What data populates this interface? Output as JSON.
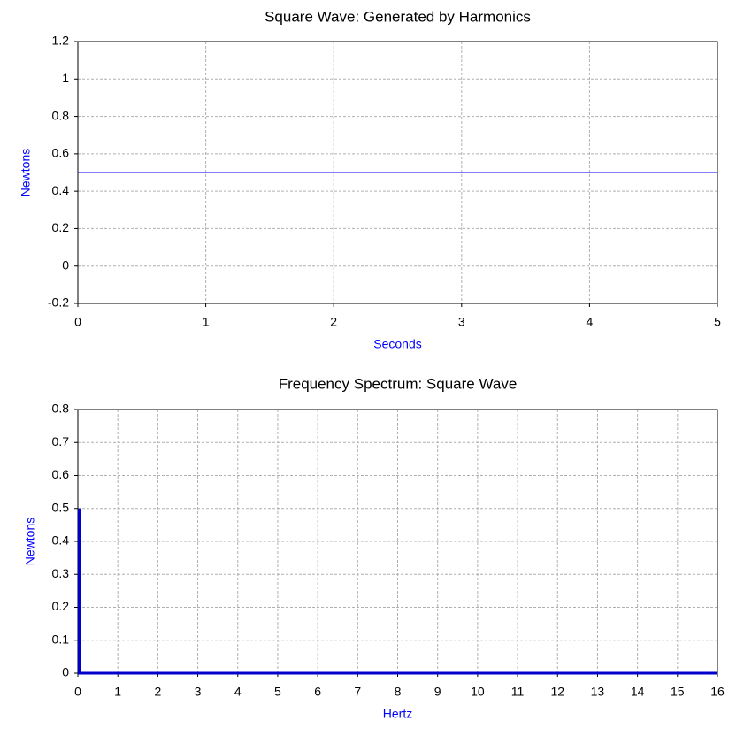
{
  "chart_data": [
    {
      "type": "line",
      "title": "Square Wave: Generated by Harmonics",
      "x_label": "Seconds",
      "y_label": "Newtons",
      "x": [
        0,
        5
      ],
      "values": [
        0.5,
        0.5
      ],
      "color": "#0000ff",
      "xlim": [
        0,
        5
      ],
      "ylim": [
        -0.2,
        1.2
      ],
      "xticks": [
        0,
        1,
        2,
        3,
        4,
        5
      ],
      "yticks": [
        -0.2,
        0,
        0.2,
        0.4,
        0.6,
        0.8,
        1,
        1.2
      ],
      "grid": true
    },
    {
      "type": "stem",
      "title": "Frequency Spectrum: Square Wave",
      "x_label": "Hertz",
      "y_label": "Newtons",
      "x": [
        0,
        16
      ],
      "values": [
        0.5,
        0
      ],
      "color": "#0000cc",
      "xlim": [
        0,
        16
      ],
      "ylim": [
        0,
        0.8
      ],
      "xticks": [
        0,
        1,
        2,
        3,
        4,
        5,
        6,
        7,
        8,
        9,
        10,
        11,
        12,
        13,
        14,
        15,
        16
      ],
      "yticks": [
        0,
        0.1,
        0.2,
        0.3,
        0.4,
        0.5,
        0.6,
        0.7,
        0.8
      ],
      "grid": true
    }
  ]
}
